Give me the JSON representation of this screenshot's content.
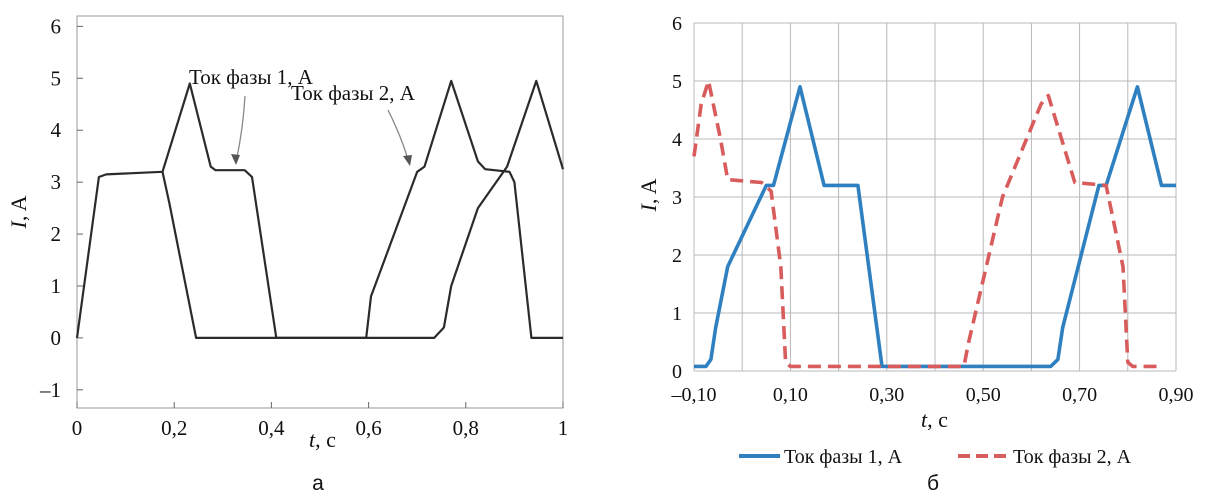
{
  "chart_data": [
    {
      "panel": "а",
      "type": "line",
      "xlabel": "t",
      "xunit": ", с",
      "ylabel": "I",
      "yunit": ", A",
      "xlim": [
        0,
        1
      ],
      "ylim": [
        -1.35,
        6.2
      ],
      "grid": false,
      "xticks": [
        0,
        0.2,
        0.4,
        0.6,
        0.8,
        1
      ],
      "xtick_labels": [
        "0",
        "0,2",
        "0,4",
        "0,6",
        "0,8",
        "1"
      ],
      "yticks": [
        -1,
        0,
        1,
        2,
        3,
        4,
        5,
        6
      ],
      "ytick_labels": [
        "–1",
        "0",
        "1",
        "2",
        "3",
        "4",
        "5",
        "6"
      ],
      "color": "#2b2b2b",
      "series": [
        {
          "name": "Ток фазы 1, А",
          "points": [
            [
              0,
              0
            ],
            [
              0.045,
              3.1
            ],
            [
              0.06,
              3.15
            ],
            [
              0.176,
              3.2
            ],
            [
              0.232,
              4.9
            ],
            [
              0.275,
              3.3
            ],
            [
              0.285,
              3.23
            ],
            [
              0.345,
              3.23
            ],
            [
              0.36,
              3.1
            ],
            [
              0.41,
              0
            ],
            [
              0.595,
              0
            ],
            [
              0.605,
              0.8
            ],
            [
              0.7,
              3.2
            ],
            [
              0.715,
              3.3
            ],
            [
              0.77,
              4.95
            ],
            [
              0.825,
              3.4
            ],
            [
              0.84,
              3.25
            ],
            [
              0.89,
              3.2
            ],
            [
              0.9,
              3.0
            ],
            [
              0.935,
              0
            ],
            [
              1,
              0
            ]
          ]
        },
        {
          "name": "Ток фазы 2, А",
          "points": [
            [
              0.176,
              3.2
            ],
            [
              0.19,
              2.6
            ],
            [
              0.245,
              0
            ],
            [
              0.735,
              0
            ],
            [
              0.755,
              0.2
            ],
            [
              0.77,
              1.0
            ],
            [
              0.825,
              2.5
            ],
            [
              0.885,
              3.3
            ],
            [
              0.945,
              4.95
            ],
            [
              1,
              3.25
            ]
          ]
        }
      ],
      "annotations": [
        {
          "text": "Ток фазы 1, А",
          "x": 0.33,
          "y": 3.25
        },
        {
          "text": "Ток фазы 2, А",
          "x": 0.69,
          "y": 3.2
        }
      ],
      "caption": "а"
    },
    {
      "panel": "б",
      "type": "line",
      "xlabel": "t",
      "xunit": ", с",
      "ylabel": "I",
      "yunit": ", A",
      "xlim": [
        -0.1,
        0.9
      ],
      "ylim": [
        0,
        6
      ],
      "grid": true,
      "xticks": [
        -0.1,
        0.1,
        0.3,
        0.5,
        0.7,
        0.9
      ],
      "xtick_labels": [
        "–0,10",
        "0,10",
        "0,30",
        "0,50",
        "0,70",
        "0,90"
      ],
      "yticks": [
        0,
        1,
        2,
        3,
        4,
        5,
        6
      ],
      "ytick_labels": [
        "0",
        "1",
        "2",
        "3",
        "4",
        "5",
        "6"
      ],
      "legend_position": "bottom",
      "series": [
        {
          "name": "Ток фазы 1, А",
          "color": "#2f80c0",
          "style": "solid",
          "points": [
            [
              -0.1,
              0.08
            ],
            [
              -0.075,
              0.08
            ],
            [
              -0.065,
              0.2
            ],
            [
              -0.055,
              0.75
            ],
            [
              -0.03,
              1.8
            ],
            [
              0.05,
              3.2
            ],
            [
              0.065,
              3.2
            ],
            [
              0.12,
              4.9
            ],
            [
              0.17,
              3.2
            ],
            [
              0.2,
              3.2
            ],
            [
              0.24,
              3.2
            ],
            [
              0.29,
              0.08
            ],
            [
              0.64,
              0.08
            ],
            [
              0.655,
              0.2
            ],
            [
              0.665,
              0.75
            ],
            [
              0.74,
              3.2
            ],
            [
              0.755,
              3.2
            ],
            [
              0.82,
              4.9
            ],
            [
              0.87,
              3.2
            ],
            [
              0.9,
              3.2
            ]
          ]
        },
        {
          "name": "Ток фазы 2, А",
          "color": "#d95c5c",
          "style": "dashed",
          "points": [
            [
              -0.1,
              3.7
            ],
            [
              -0.085,
              4.6
            ],
            [
              -0.07,
              5.0
            ],
            [
              -0.045,
              4.0
            ],
            [
              -0.03,
              3.3
            ],
            [
              0.04,
              3.25
            ],
            [
              0.06,
              3.1
            ],
            [
              0.08,
              1.8
            ],
            [
              0.09,
              0.15
            ],
            [
              0.1,
              0.08
            ],
            [
              0.46,
              0.08
            ],
            [
              0.47,
              0.5
            ],
            [
              0.54,
              3.0
            ],
            [
              0.62,
              4.6
            ],
            [
              0.635,
              4.75
            ],
            [
              0.69,
              3.25
            ],
            [
              0.755,
              3.2
            ],
            [
              0.79,
              1.8
            ],
            [
              0.8,
              0.15
            ],
            [
              0.81,
              0.08
            ],
            [
              0.86,
              0.08
            ]
          ]
        }
      ],
      "caption": "б"
    }
  ]
}
